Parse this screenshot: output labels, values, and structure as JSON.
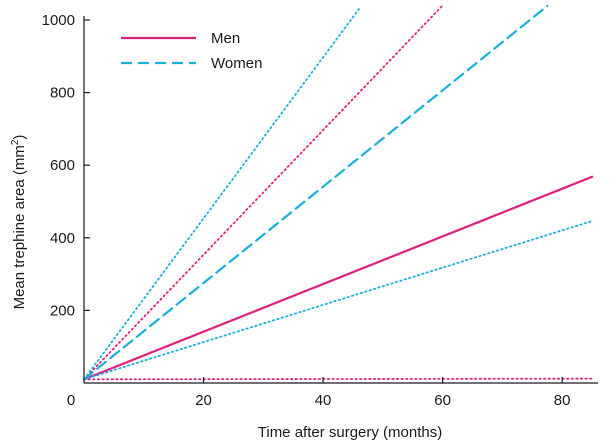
{
  "chart_data": {
    "type": "line",
    "title": "",
    "xlabel": "Time after surgery (months)",
    "ylabel_main": "Mean trephine area (mm",
    "ylabel_sup": "2",
    "ylabel_close": ")",
    "xlim": [
      0,
      86
    ],
    "ylim": [
      0,
      1000
    ],
    "x_ticks": [
      0,
      20,
      40,
      60,
      80
    ],
    "y_ticks": [
      200,
      400,
      600,
      800,
      1000
    ],
    "legend_position": "top-left",
    "grid": false,
    "legend": [
      {
        "name": "Men",
        "color": "#e0207a",
        "style": "solid"
      },
      {
        "name": "Women",
        "color": "#1aaedb",
        "style": "dashed"
      }
    ],
    "series": [
      {
        "group": "Men",
        "kind": "mean",
        "style": "solid",
        "color": "#e0207a",
        "x": [
          0,
          85
        ],
        "y": [
          10,
          568
        ]
      },
      {
        "group": "Men",
        "kind": "upper-ci",
        "style": "dotted",
        "color": "#e0207a",
        "x": [
          0,
          60
        ],
        "y": [
          10,
          1040
        ]
      },
      {
        "group": "Men",
        "kind": "lower-ci",
        "style": "dotted",
        "color": "#e0207a",
        "x": [
          0,
          85
        ],
        "y": [
          10,
          12
        ]
      },
      {
        "group": "Women",
        "kind": "mean",
        "style": "dashed",
        "color": "#1aaedb",
        "x": [
          0,
          78
        ],
        "y": [
          10,
          1045
        ]
      },
      {
        "group": "Women",
        "kind": "upper-ci",
        "style": "dotted",
        "color": "#1aaedb",
        "x": [
          0,
          46
        ],
        "y": [
          10,
          1030
        ]
      },
      {
        "group": "Women",
        "kind": "lower-ci",
        "style": "dotted",
        "color": "#1aaedb",
        "x": [
          0,
          85
        ],
        "y": [
          10,
          446
        ]
      }
    ]
  }
}
